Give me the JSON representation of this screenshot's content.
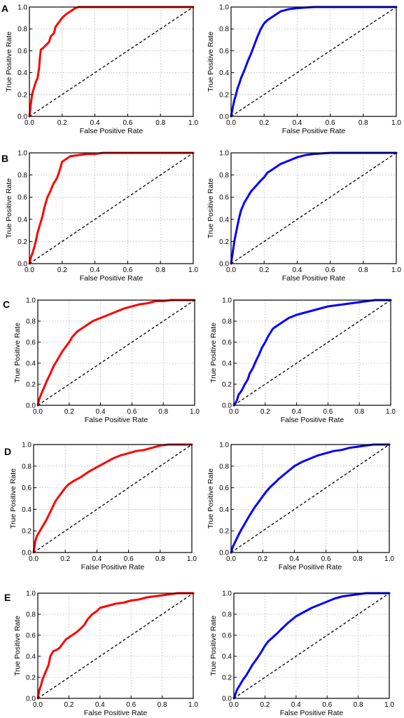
{
  "panel_letters": [
    "A",
    "B",
    "C",
    "D",
    "E"
  ],
  "colors": {
    "left": "#ff0000",
    "right": "#0000ff",
    "diagonal": "#000000",
    "grid": "#b0b0b0"
  },
  "chart_data": [
    {
      "type": "line",
      "panel": "A",
      "xlabel": "False Positive Rate",
      "ylabel": "True Positive Rate",
      "xlim": [
        0,
        1
      ],
      "ylim": [
        0,
        1
      ],
      "xticks": [
        "0.0",
        "0.2",
        "0.4",
        "0.6",
        "0.8",
        "1.0"
      ],
      "yticks": [
        "0.0",
        "0.2",
        "0.4",
        "0.6",
        "0.8",
        "1.0"
      ],
      "grid": true,
      "diagonal": true,
      "series": [
        {
          "color": "#ff0000",
          "x": [
            0,
            0.005,
            0.01,
            0.015,
            0.02,
            0.03,
            0.04,
            0.05,
            0.06,
            0.065,
            0.07,
            0.08,
            0.1,
            0.12,
            0.13,
            0.15,
            0.16,
            0.18,
            0.2,
            0.22,
            0.25,
            0.28,
            0.3,
            0.35,
            0.5,
            0.75,
            1.0
          ],
          "y": [
            0,
            0.06,
            0.13,
            0.18,
            0.22,
            0.27,
            0.32,
            0.35,
            0.45,
            0.55,
            0.61,
            0.62,
            0.65,
            0.68,
            0.73,
            0.76,
            0.82,
            0.86,
            0.9,
            0.93,
            0.96,
            0.99,
            1.0,
            1.0,
            1.0,
            1.0,
            1.0
          ]
        }
      ]
    },
    {
      "type": "line",
      "panel": "A",
      "xlabel": "False Positive Rate",
      "ylabel": "True Positive Rate",
      "xlim": [
        0,
        1
      ],
      "ylim": [
        0,
        1
      ],
      "xticks": [
        "0.0",
        "0.2",
        "0.4",
        "0.6",
        "0.8",
        "1.0"
      ],
      "yticks": [
        "0.0",
        "0.2",
        "0.4",
        "0.6",
        "0.8",
        "1.0"
      ],
      "grid": true,
      "diagonal": true,
      "series": [
        {
          "color": "#0000ff",
          "x": [
            0,
            0.01,
            0.02,
            0.03,
            0.04,
            0.05,
            0.06,
            0.08,
            0.1,
            0.12,
            0.14,
            0.16,
            0.18,
            0.2,
            0.22,
            0.25,
            0.28,
            0.3,
            0.35,
            0.4,
            0.5,
            0.6,
            0.7,
            0.8,
            1.0
          ],
          "y": [
            0,
            0.08,
            0.15,
            0.2,
            0.26,
            0.3,
            0.35,
            0.42,
            0.5,
            0.57,
            0.65,
            0.73,
            0.8,
            0.85,
            0.88,
            0.91,
            0.94,
            0.96,
            0.98,
            0.99,
            1.0,
            1.0,
            1.0,
            1.0,
            1.0
          ]
        }
      ]
    },
    {
      "type": "line",
      "panel": "B",
      "xlabel": "False Positive Rate",
      "ylabel": "True Positive Rate",
      "xlim": [
        0,
        1
      ],
      "ylim": [
        0,
        1
      ],
      "xticks": [
        "0.0",
        "0.2",
        "0.4",
        "0.6",
        "0.8",
        "1.0"
      ],
      "yticks": [
        "0.0",
        "0.2",
        "0.4",
        "0.6",
        "0.8",
        "1.0"
      ],
      "grid": true,
      "diagonal": true,
      "series": [
        {
          "color": "#ff0000",
          "x": [
            0,
            0.01,
            0.02,
            0.03,
            0.04,
            0.05,
            0.06,
            0.07,
            0.08,
            0.09,
            0.1,
            0.11,
            0.12,
            0.13,
            0.14,
            0.15,
            0.16,
            0.17,
            0.18,
            0.19,
            0.2,
            0.22,
            0.25,
            0.3,
            0.35,
            0.4,
            0.45,
            0.6,
            0.8,
            1.0
          ],
          "y": [
            0,
            0.06,
            0.1,
            0.15,
            0.21,
            0.28,
            0.33,
            0.38,
            0.43,
            0.5,
            0.55,
            0.6,
            0.63,
            0.66,
            0.7,
            0.73,
            0.75,
            0.78,
            0.82,
            0.87,
            0.92,
            0.94,
            0.97,
            0.98,
            0.99,
            0.99,
            1.0,
            1.0,
            1.0,
            1.0
          ]
        }
      ]
    },
    {
      "type": "line",
      "panel": "B",
      "xlabel": "False Positive Rate",
      "ylabel": "True Positive Rate",
      "xlim": [
        0,
        1
      ],
      "ylim": [
        0,
        1
      ],
      "xticks": [
        "0.0",
        "0.2",
        "0.4",
        "0.6",
        "0.8",
        "1.0"
      ],
      "yticks": [
        "0.0",
        "0.2",
        "0.4",
        "0.6",
        "0.8",
        "1.0"
      ],
      "grid": true,
      "diagonal": true,
      "series": [
        {
          "color": "#0000ff",
          "x": [
            0,
            0.01,
            0.02,
            0.03,
            0.04,
            0.05,
            0.06,
            0.08,
            0.1,
            0.12,
            0.15,
            0.18,
            0.2,
            0.22,
            0.25,
            0.28,
            0.3,
            0.35,
            0.4,
            0.45,
            0.5,
            0.6,
            0.7,
            0.8,
            1.0
          ],
          "y": [
            0,
            0.1,
            0.2,
            0.28,
            0.35,
            0.42,
            0.48,
            0.55,
            0.6,
            0.65,
            0.7,
            0.75,
            0.78,
            0.82,
            0.85,
            0.88,
            0.9,
            0.93,
            0.96,
            0.98,
            0.99,
            1.0,
            1.0,
            1.0,
            1.0
          ]
        }
      ]
    },
    {
      "type": "line",
      "panel": "C",
      "xlabel": "False Positive Rate",
      "ylabel": "True Positive Rate",
      "xlim": [
        0,
        1
      ],
      "ylim": [
        0,
        1
      ],
      "xticks": [
        "0.0",
        "0.2",
        "0.4",
        "0.6",
        "0.8",
        "1.0"
      ],
      "yticks": [
        "0.0",
        "0.2",
        "0.4",
        "0.6",
        "0.8",
        "1.0"
      ],
      "grid": true,
      "diagonal": true,
      "series": [
        {
          "color": "#ff0000",
          "x": [
            0,
            0.01,
            0.02,
            0.04,
            0.06,
            0.08,
            0.1,
            0.12,
            0.14,
            0.16,
            0.18,
            0.2,
            0.22,
            0.25,
            0.3,
            0.35,
            0.4,
            0.45,
            0.5,
            0.55,
            0.6,
            0.65,
            0.7,
            0.75,
            0.8,
            0.85,
            0.9,
            1.0
          ],
          "y": [
            0,
            0.06,
            0.1,
            0.17,
            0.24,
            0.3,
            0.37,
            0.42,
            0.47,
            0.52,
            0.56,
            0.6,
            0.65,
            0.7,
            0.75,
            0.8,
            0.83,
            0.86,
            0.89,
            0.92,
            0.94,
            0.96,
            0.97,
            0.99,
            0.99,
            1.0,
            1.0,
            1.0
          ]
        }
      ]
    },
    {
      "type": "line",
      "panel": "C",
      "xlabel": "False Positive Rate",
      "ylabel": "True Positive Rate",
      "xlim": [
        0,
        1
      ],
      "ylim": [
        0,
        1
      ],
      "xticks": [
        "0.0",
        "0.2",
        "0.4",
        "0.6",
        "0.8",
        "1.0"
      ],
      "yticks": [
        "0.0",
        "0.2",
        "0.4",
        "0.6",
        "0.8",
        "1.0"
      ],
      "grid": true,
      "diagonal": true,
      "series": [
        {
          "color": "#0000ff",
          "x": [
            0,
            0.01,
            0.02,
            0.03,
            0.05,
            0.07,
            0.09,
            0.1,
            0.12,
            0.14,
            0.16,
            0.18,
            0.2,
            0.22,
            0.25,
            0.28,
            0.3,
            0.35,
            0.4,
            0.45,
            0.5,
            0.55,
            0.6,
            0.7,
            0.8,
            0.85,
            0.9,
            1.0
          ],
          "y": [
            0,
            0.02,
            0.05,
            0.1,
            0.14,
            0.2,
            0.25,
            0.3,
            0.35,
            0.42,
            0.48,
            0.55,
            0.6,
            0.66,
            0.73,
            0.76,
            0.78,
            0.83,
            0.86,
            0.88,
            0.9,
            0.92,
            0.94,
            0.96,
            0.98,
            0.99,
            1.0,
            1.0
          ]
        }
      ]
    },
    {
      "type": "line",
      "panel": "D",
      "xlabel": "False Positive Rate",
      "ylabel": "True Positive Rate",
      "xlim": [
        0,
        1
      ],
      "ylim": [
        0,
        1
      ],
      "xticks": [
        "0.0",
        "0.2",
        "0.4",
        "0.6",
        "0.8",
        "1.0"
      ],
      "yticks": [
        "0.0",
        "0.2",
        "0.4",
        "0.6",
        "0.8",
        "1.0"
      ],
      "grid": true,
      "diagonal": true,
      "series": [
        {
          "color": "#ff0000",
          "x": [
            0,
            0.01,
            0.02,
            0.04,
            0.06,
            0.08,
            0.1,
            0.12,
            0.14,
            0.16,
            0.18,
            0.2,
            0.22,
            0.25,
            0.3,
            0.35,
            0.4,
            0.45,
            0.5,
            0.55,
            0.6,
            0.65,
            0.7,
            0.75,
            0.8,
            0.85,
            0.9,
            1.0
          ],
          "y": [
            0,
            0.1,
            0.15,
            0.2,
            0.25,
            0.3,
            0.36,
            0.42,
            0.48,
            0.52,
            0.56,
            0.6,
            0.63,
            0.66,
            0.7,
            0.75,
            0.79,
            0.83,
            0.87,
            0.9,
            0.92,
            0.94,
            0.95,
            0.97,
            0.99,
            1.0,
            1.0,
            1.0
          ]
        }
      ]
    },
    {
      "type": "line",
      "panel": "D",
      "xlabel": "False Positive Rate",
      "ylabel": "True Positive Rate",
      "xlim": [
        0,
        1
      ],
      "ylim": [
        0,
        1
      ],
      "xticks": [
        "0.0",
        "0.2",
        "0.4",
        "0.6",
        "0.8",
        "1.0"
      ],
      "yticks": [
        "0.0",
        "0.2",
        "0.4",
        "0.6",
        "0.8",
        "1.0"
      ],
      "grid": true,
      "diagonal": true,
      "series": [
        {
          "color": "#0000ff",
          "x": [
            0,
            0.01,
            0.02,
            0.04,
            0.06,
            0.08,
            0.1,
            0.12,
            0.15,
            0.18,
            0.2,
            0.22,
            0.25,
            0.28,
            0.3,
            0.35,
            0.4,
            0.45,
            0.5,
            0.55,
            0.6,
            0.65,
            0.7,
            0.75,
            0.8,
            0.85,
            0.9,
            1.0
          ],
          "y": [
            0,
            0.05,
            0.08,
            0.14,
            0.2,
            0.25,
            0.3,
            0.35,
            0.42,
            0.48,
            0.52,
            0.56,
            0.61,
            0.65,
            0.68,
            0.74,
            0.8,
            0.84,
            0.87,
            0.9,
            0.92,
            0.94,
            0.95,
            0.97,
            0.98,
            0.99,
            1.0,
            1.0
          ]
        }
      ]
    },
    {
      "type": "line",
      "panel": "E",
      "xlabel": "False Positive Rate",
      "ylabel": "True Positive Rate",
      "xlim": [
        0,
        1
      ],
      "ylim": [
        0,
        1
      ],
      "xticks": [
        "0.0",
        "0.2",
        "0.4",
        "0.6",
        "0.8",
        "1.0"
      ],
      "yticks": [
        "0.0",
        "0.2",
        "0.4",
        "0.6",
        "0.8",
        "1.0"
      ],
      "grid": true,
      "diagonal": true,
      "series": [
        {
          "color": "#ff0000",
          "x": [
            0,
            0.01,
            0.02,
            0.03,
            0.05,
            0.07,
            0.08,
            0.1,
            0.12,
            0.14,
            0.16,
            0.18,
            0.2,
            0.22,
            0.25,
            0.28,
            0.3,
            0.32,
            0.35,
            0.38,
            0.4,
            0.45,
            0.5,
            0.55,
            0.6,
            0.65,
            0.7,
            0.75,
            0.8,
            0.85,
            0.9,
            1.0
          ],
          "y": [
            0,
            0.08,
            0.12,
            0.18,
            0.25,
            0.32,
            0.4,
            0.45,
            0.46,
            0.48,
            0.52,
            0.56,
            0.58,
            0.6,
            0.63,
            0.67,
            0.7,
            0.75,
            0.8,
            0.83,
            0.86,
            0.88,
            0.9,
            0.91,
            0.93,
            0.94,
            0.96,
            0.97,
            0.98,
            0.99,
            1.0,
            1.0
          ]
        }
      ]
    },
    {
      "type": "line",
      "panel": "E",
      "xlabel": "False Positive Rate",
      "ylabel": "True Positive Rate",
      "xlim": [
        0,
        1
      ],
      "ylim": [
        0,
        1
      ],
      "xticks": [
        "0.0",
        "0.2",
        "0.4",
        "0.6",
        "0.8",
        "1.0"
      ],
      "yticks": [
        "0.0",
        "0.2",
        "0.4",
        "0.6",
        "0.8",
        "1.0"
      ],
      "grid": true,
      "diagonal": true,
      "series": [
        {
          "color": "#0000ff",
          "x": [
            0,
            0.01,
            0.02,
            0.04,
            0.06,
            0.08,
            0.1,
            0.12,
            0.15,
            0.18,
            0.2,
            0.22,
            0.25,
            0.28,
            0.3,
            0.35,
            0.4,
            0.45,
            0.5,
            0.55,
            0.6,
            0.65,
            0.7,
            0.75,
            0.8,
            0.85,
            0.9,
            1.0
          ],
          "y": [
            0,
            0.04,
            0.08,
            0.13,
            0.18,
            0.22,
            0.27,
            0.32,
            0.38,
            0.45,
            0.5,
            0.54,
            0.58,
            0.62,
            0.65,
            0.72,
            0.78,
            0.82,
            0.86,
            0.89,
            0.92,
            0.95,
            0.97,
            0.98,
            0.99,
            1.0,
            1.0,
            1.0
          ]
        }
      ]
    }
  ]
}
